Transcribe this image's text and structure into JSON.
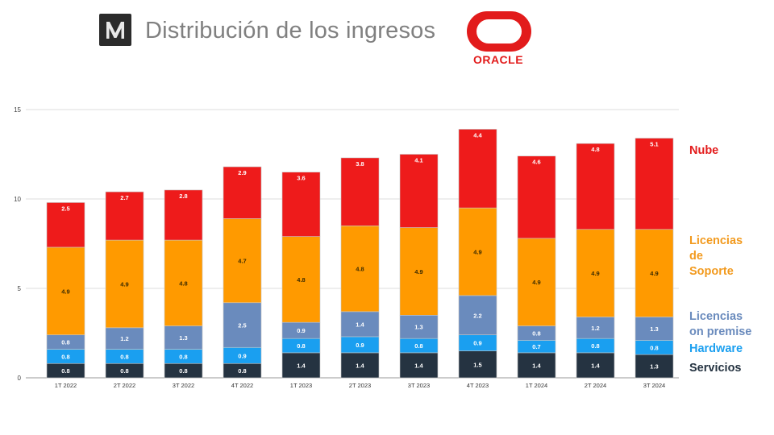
{
  "header": {
    "title": "Distribución de los ingresos",
    "logo_text": "ORACLE"
  },
  "colors": {
    "Servicios": "#253341",
    "Hardware": "#1a9ff0",
    "Licencias on premise": "#6a8bbd",
    "Licencias de Soporte": "#ff9a00",
    "Nube": "#ee1b1b"
  },
  "legend": [
    {
      "key": "Nube",
      "lines": [
        "Nube"
      ],
      "color": "#e31b1b"
    },
    {
      "key": "Licencias de Soporte",
      "lines": [
        "Licencias",
        "de",
        "Soporte"
      ],
      "color": "#f29a1e"
    },
    {
      "key": "Licencias on premise",
      "lines": [
        "Licencias",
        "on premise"
      ],
      "color": "#6a8bbd"
    },
    {
      "key": "Hardware",
      "lines": [
        "Hardware"
      ],
      "color": "#1a9ff0"
    },
    {
      "key": "Servicios",
      "lines": [
        "Servicios"
      ],
      "color": "#253341"
    }
  ],
  "chart_data": {
    "type": "bar",
    "stacked": true,
    "categories": [
      "1T 2022",
      "2T 2022",
      "3T 2022",
      "4T 2022",
      "1T 2023",
      "2T 2023",
      "3T 2023",
      "4T 2023",
      "1T 2024",
      "2T 2024",
      "3T 2024"
    ],
    "series": [
      {
        "name": "Servicios",
        "values": [
          0.8,
          0.8,
          0.8,
          0.8,
          1.4,
          1.4,
          1.4,
          1.5,
          1.4,
          1.4,
          1.3
        ]
      },
      {
        "name": "Hardware",
        "values": [
          0.8,
          0.8,
          0.8,
          0.9,
          0.8,
          0.9,
          0.8,
          0.9,
          0.7,
          0.8,
          0.8
        ]
      },
      {
        "name": "Licencias on premise",
        "values": [
          0.8,
          1.2,
          1.3,
          2.5,
          0.9,
          1.4,
          1.3,
          2.2,
          0.8,
          1.2,
          1.3
        ]
      },
      {
        "name": "Licencias de Soporte",
        "values": [
          4.9,
          4.9,
          4.8,
          4.7,
          4.8,
          4.8,
          4.9,
          4.9,
          4.9,
          4.9,
          4.9
        ]
      },
      {
        "name": "Nube",
        "values": [
          2.5,
          2.7,
          2.8,
          2.9,
          3.6,
          3.8,
          4.1,
          4.4,
          4.6,
          4.8,
          5.1
        ]
      }
    ],
    "y_ticks": [
      0,
      5,
      10,
      15
    ],
    "ylim": [
      0,
      15
    ],
    "grid": true,
    "legend_position": "right"
  }
}
